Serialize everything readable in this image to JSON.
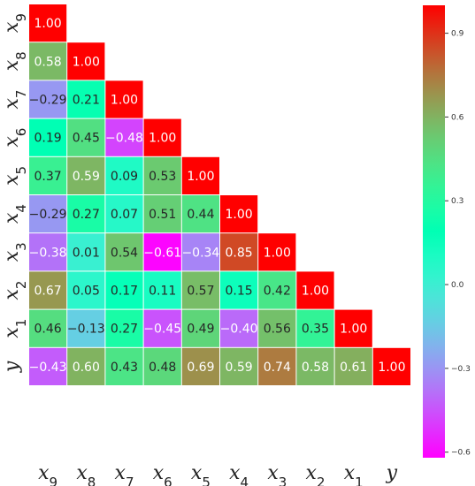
{
  "chart_data": {
    "type": "heatmap",
    "title": "",
    "variables": [
      "x9",
      "x8",
      "x7",
      "x6",
      "x5",
      "x4",
      "x3",
      "x2",
      "x1",
      "y"
    ],
    "row_labels": [
      {
        "base": "x",
        "sub": "9"
      },
      {
        "base": "x",
        "sub": "8"
      },
      {
        "base": "x",
        "sub": "7"
      },
      {
        "base": "x",
        "sub": "6"
      },
      {
        "base": "x",
        "sub": "5"
      },
      {
        "base": "x",
        "sub": "4"
      },
      {
        "base": "x",
        "sub": "3"
      },
      {
        "base": "x",
        "sub": "2"
      },
      {
        "base": "x",
        "sub": "1"
      },
      {
        "base": "y",
        "sub": ""
      }
    ],
    "col_labels": [
      {
        "base": "x",
        "sub": "9"
      },
      {
        "base": "x",
        "sub": "8"
      },
      {
        "base": "x",
        "sub": "7"
      },
      {
        "base": "x",
        "sub": "6"
      },
      {
        "base": "x",
        "sub": "5"
      },
      {
        "base": "x",
        "sub": "4"
      },
      {
        "base": "x",
        "sub": "3"
      },
      {
        "base": "x",
        "sub": "2"
      },
      {
        "base": "x",
        "sub": "1"
      },
      {
        "base": "y",
        "sub": ""
      }
    ],
    "values": [
      [
        1.0
      ],
      [
        0.58,
        1.0
      ],
      [
        -0.29,
        0.21,
        1.0
      ],
      [
        0.19,
        0.45,
        -0.48,
        1.0
      ],
      [
        0.37,
        0.59,
        0.09,
        0.53,
        1.0
      ],
      [
        -0.29,
        0.27,
        0.07,
        0.51,
        0.44,
        1.0
      ],
      [
        -0.38,
        0.01,
        0.54,
        -0.61,
        -0.34,
        0.85,
        1.0
      ],
      [
        0.67,
        0.05,
        0.17,
        0.11,
        0.57,
        0.15,
        0.42,
        1.0
      ],
      [
        0.46,
        -0.13,
        0.27,
        -0.45,
        0.49,
        -0.4,
        0.56,
        0.35,
        1.0
      ],
      [
        -0.43,
        0.6,
        0.43,
        0.48,
        0.69,
        0.59,
        0.74,
        0.58,
        0.61,
        1.0
      ]
    ],
    "value_format": "2 decimals",
    "mask": "lower-triangle",
    "colormap": "rainbow",
    "vmin": -0.62,
    "vmax": 1.0,
    "colorbar": {
      "ticks": [
        -0.6,
        -0.3,
        0.0,
        0.3,
        0.6,
        0.9
      ],
      "tick_labels": [
        "−0.6",
        "−0.3",
        "0.0",
        "0.3",
        "0.6",
        "0.9"
      ],
      "placement": "right"
    },
    "grid": false
  }
}
